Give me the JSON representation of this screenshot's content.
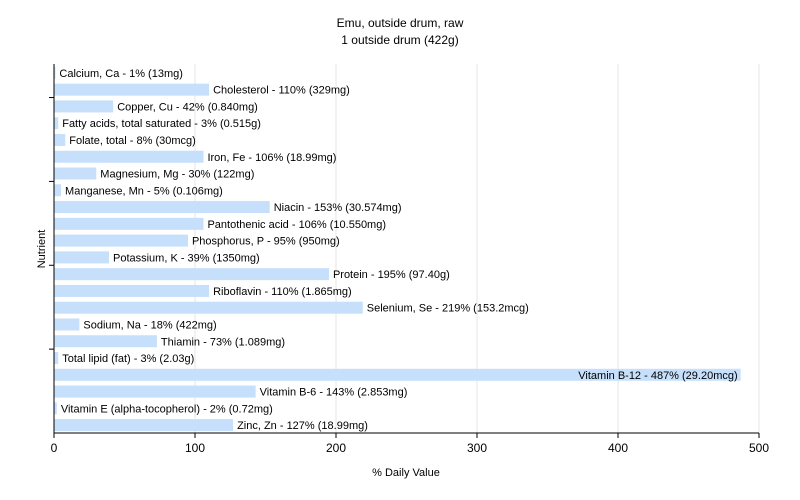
{
  "chart_data": {
    "type": "bar",
    "orientation": "horizontal",
    "title": "Emu, outside drum, raw",
    "subtitle": "1 outside drum (422g)",
    "xlabel": "% Daily Value",
    "ylabel": "Nutrient",
    "xlim": [
      0,
      500
    ],
    "xticks": [
      "0",
      "100",
      "200",
      "300",
      "400",
      "500"
    ],
    "grid": true,
    "bar_color": "#c6dffb",
    "categories": [
      "Calcium, Ca",
      "Cholesterol",
      "Copper, Cu",
      "Fatty acids, total saturated",
      "Folate, total",
      "Iron, Fe",
      "Magnesium, Mg",
      "Manganese, Mn",
      "Niacin",
      "Pantothenic acid",
      "Phosphorus, P",
      "Potassium, K",
      "Protein",
      "Riboflavin",
      "Selenium, Se",
      "Sodium, Na",
      "Thiamin",
      "Total lipid (fat)",
      "Vitamin B-12",
      "Vitamin B-6",
      "Vitamin E (alpha-tocopherol)",
      "Zinc, Zn"
    ],
    "values": [
      1,
      110,
      42,
      3,
      8,
      106,
      30,
      5,
      153,
      106,
      95,
      39,
      195,
      110,
      219,
      18,
      73,
      3,
      487,
      143,
      2,
      127
    ],
    "labels": [
      "Calcium, Ca - 1% (13mg)",
      "Cholesterol - 110% (329mg)",
      "Copper, Cu - 42% (0.840mg)",
      "Fatty acids, total saturated - 3% (0.515g)",
      "Folate, total - 8% (30mcg)",
      "Iron, Fe - 106% (18.99mg)",
      "Magnesium, Mg - 30% (122mg)",
      "Manganese, Mn - 5% (0.106mg)",
      "Niacin - 153% (30.574mg)",
      "Pantothenic acid - 106% (10.550mg)",
      "Phosphorus, P - 95% (950mg)",
      "Potassium, K - 39% (1350mg)",
      "Protein - 195% (97.40g)",
      "Riboflavin - 110% (1.865mg)",
      "Selenium, Se - 219% (153.2mcg)",
      "Sodium, Na - 18% (422mg)",
      "Thiamin - 73% (1.089mg)",
      "Total lipid (fat) - 3% (2.03g)",
      "Vitamin B-12 - 487% (29.20mcg)",
      "Vitamin B-6 - 143% (2.853mg)",
      "Vitamin E (alpha-tocopherol) - 2% (0.72mg)",
      "Zinc, Zn - 127% (18.99mg)"
    ]
  }
}
